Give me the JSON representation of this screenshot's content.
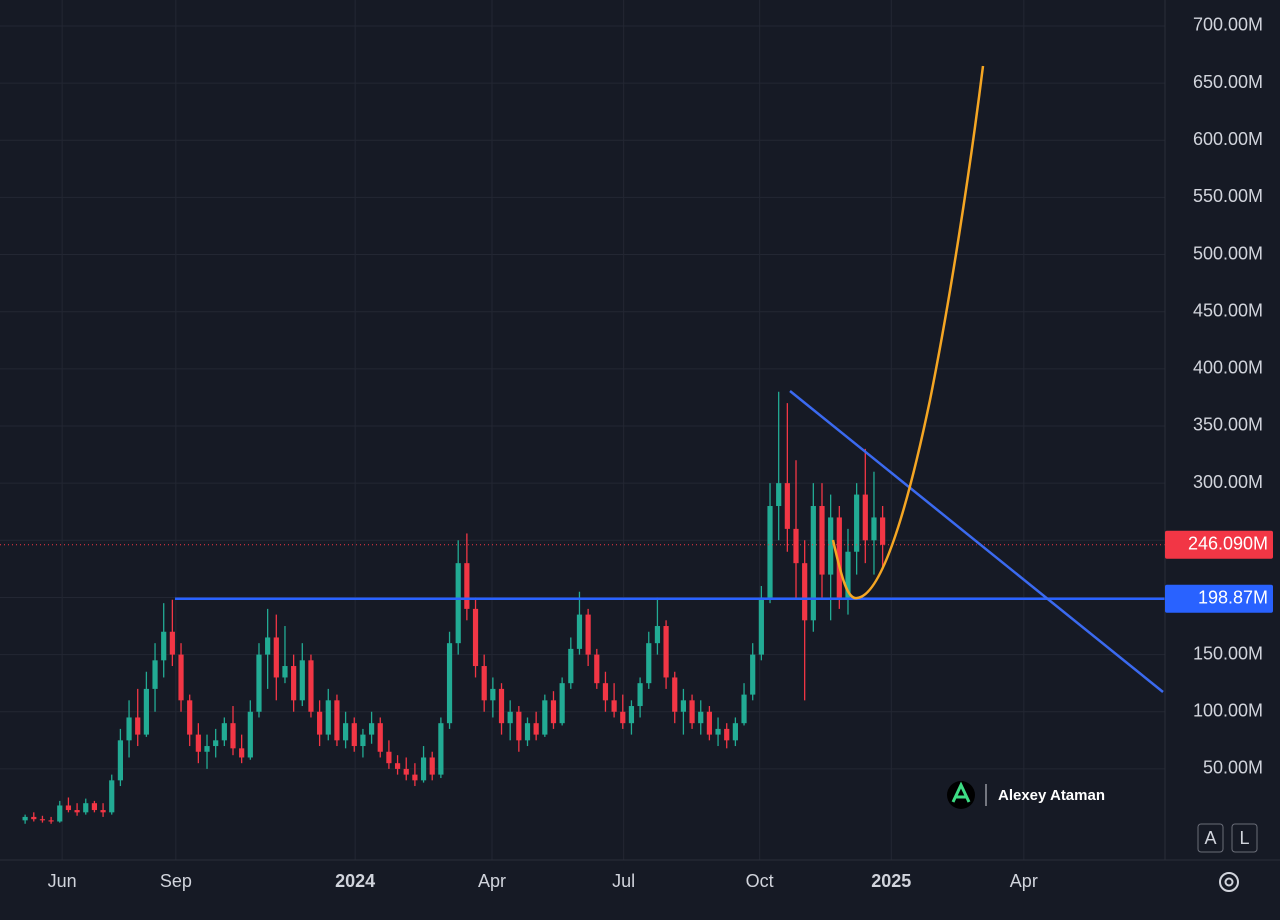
{
  "chart_data": {
    "type": "candlestick",
    "up_color": "#22ab94",
    "down_color": "#f23645",
    "grid": true,
    "xlim": [
      -2.9,
      131.6
    ],
    "xticks": [
      {
        "value": 4.27,
        "label": "Jun"
      },
      {
        "value": 17.4,
        "label": "Sep"
      },
      {
        "value": 38.1,
        "label": "2024"
      },
      {
        "value": 53.9,
        "label": "Apr"
      },
      {
        "value": 69.1,
        "label": "Jul"
      },
      {
        "value": 84.8,
        "label": "Oct"
      },
      {
        "value": 100,
        "label": "2025"
      },
      {
        "value": 115.3,
        "label": "Apr"
      }
    ],
    "ylim": [
      -29.7,
      722.7
    ],
    "yticks": [
      {
        "value": 50,
        "label": "50.00M"
      },
      {
        "value": 100,
        "label": "100.00M"
      },
      {
        "value": 150,
        "label": "150.00M"
      },
      {
        "value": 200,
        "label": "200.00M"
      },
      {
        "value": 250,
        "label": "250.00M"
      },
      {
        "value": 300,
        "label": "300.00M"
      },
      {
        "value": 350,
        "label": "350.00M"
      },
      {
        "value": 400,
        "label": "400.00M"
      },
      {
        "value": 450,
        "label": "450.00M"
      },
      {
        "value": 500,
        "label": "500.00M"
      },
      {
        "value": 550,
        "label": "550.00M"
      },
      {
        "value": 600,
        "label": "600.00M"
      },
      {
        "value": 650,
        "label": "650.00M"
      },
      {
        "value": 700,
        "label": "700.00M"
      }
    ],
    "ohlc": [
      [
        5,
        10,
        2,
        8
      ],
      [
        8,
        12,
        4,
        6
      ],
      [
        6,
        9,
        3,
        5
      ],
      [
        5,
        8,
        2,
        4
      ],
      [
        4,
        22,
        3,
        18
      ],
      [
        18,
        25,
        12,
        14
      ],
      [
        14,
        20,
        9,
        12
      ],
      [
        12,
        24,
        10,
        20
      ],
      [
        20,
        22,
        12,
        14
      ],
      [
        14,
        20,
        8,
        12
      ],
      [
        12,
        45,
        10,
        40
      ],
      [
        40,
        85,
        35,
        75
      ],
      [
        75,
        110,
        60,
        95
      ],
      [
        95,
        120,
        70,
        80
      ],
      [
        80,
        135,
        78,
        120
      ],
      [
        120,
        160,
        100,
        145
      ],
      [
        145,
        195,
        130,
        170
      ],
      [
        170,
        198,
        140,
        150
      ],
      [
        150,
        160,
        100,
        110
      ],
      [
        110,
        115,
        70,
        80
      ],
      [
        80,
        90,
        55,
        65
      ],
      [
        65,
        80,
        50,
        70
      ],
      [
        70,
        85,
        60,
        75
      ],
      [
        75,
        95,
        70,
        90
      ],
      [
        90,
        105,
        62,
        68
      ],
      [
        68,
        80,
        55,
        60
      ],
      [
        60,
        110,
        58,
        100
      ],
      [
        100,
        160,
        95,
        150
      ],
      [
        150,
        190,
        120,
        165
      ],
      [
        165,
        185,
        110,
        130
      ],
      [
        130,
        175,
        125,
        140
      ],
      [
        140,
        150,
        100,
        110
      ],
      [
        110,
        160,
        105,
        145
      ],
      [
        145,
        150,
        95,
        100
      ],
      [
        100,
        110,
        70,
        80
      ],
      [
        80,
        120,
        75,
        110
      ],
      [
        110,
        115,
        70,
        75
      ],
      [
        75,
        100,
        68,
        90
      ],
      [
        90,
        95,
        65,
        70
      ],
      [
        70,
        85,
        60,
        80
      ],
      [
        80,
        100,
        72,
        90
      ],
      [
        90,
        95,
        60,
        65
      ],
      [
        65,
        75,
        50,
        55
      ],
      [
        55,
        62,
        45,
        50
      ],
      [
        50,
        60,
        40,
        45
      ],
      [
        45,
        55,
        35,
        40
      ],
      [
        40,
        70,
        38,
        60
      ],
      [
        60,
        65,
        40,
        45
      ],
      [
        45,
        95,
        42,
        90
      ],
      [
        90,
        170,
        85,
        160
      ],
      [
        160,
        250,
        150,
        230
      ],
      [
        230,
        256,
        180,
        190
      ],
      [
        190,
        200,
        130,
        140
      ],
      [
        140,
        150,
        100,
        110
      ],
      [
        110,
        130,
        95,
        120
      ],
      [
        120,
        125,
        80,
        90
      ],
      [
        90,
        110,
        75,
        100
      ],
      [
        100,
        105,
        65,
        75
      ],
      [
        75,
        95,
        70,
        90
      ],
      [
        90,
        100,
        75,
        80
      ],
      [
        80,
        115,
        78,
        110
      ],
      [
        110,
        118,
        85,
        90
      ],
      [
        90,
        130,
        88,
        125
      ],
      [
        125,
        165,
        120,
        155
      ],
      [
        155,
        205,
        150,
        185
      ],
      [
        185,
        190,
        140,
        150
      ],
      [
        150,
        155,
        120,
        125
      ],
      [
        125,
        135,
        100,
        110
      ],
      [
        110,
        125,
        95,
        100
      ],
      [
        100,
        115,
        85,
        90
      ],
      [
        90,
        110,
        80,
        105
      ],
      [
        105,
        130,
        95,
        125
      ],
      [
        125,
        170,
        120,
        160
      ],
      [
        160,
        200,
        150,
        175
      ],
      [
        175,
        180,
        120,
        130
      ],
      [
        130,
        135,
        90,
        100
      ],
      [
        100,
        120,
        80,
        110
      ],
      [
        110,
        115,
        85,
        90
      ],
      [
        90,
        110,
        80,
        100
      ],
      [
        100,
        105,
        75,
        80
      ],
      [
        80,
        95,
        70,
        85
      ],
      [
        85,
        90,
        68,
        75
      ],
      [
        75,
        95,
        70,
        90
      ],
      [
        90,
        125,
        88,
        115
      ],
      [
        115,
        160,
        110,
        150
      ],
      [
        150,
        210,
        145,
        200
      ],
      [
        200,
        300,
        195,
        280
      ],
      [
        280,
        380,
        250,
        300
      ],
      [
        300,
        370,
        240,
        260
      ],
      [
        260,
        320,
        200,
        230
      ],
      [
        230,
        250,
        110,
        180
      ],
      [
        180,
        300,
        170,
        280
      ],
      [
        280,
        300,
        200,
        220
      ],
      [
        220,
        290,
        180,
        270
      ],
      [
        270,
        280,
        190,
        200
      ],
      [
        200,
        260,
        185,
        240
      ],
      [
        240,
        300,
        220,
        290
      ],
      [
        290,
        330,
        230,
        250
      ],
      [
        250,
        310,
        220,
        270
      ],
      [
        270,
        280,
        225,
        246.09
      ]
    ],
    "price_lines": [
      {
        "value": 246.09,
        "label": "246.090M",
        "color": "#f23645",
        "start": -2.9
      },
      {
        "value": 198.87,
        "label": "198.87M",
        "color": "#2962ff",
        "start": 17.3
      }
    ],
    "watermark": "Alexey Ataman",
    "buttons": [
      "A",
      "L"
    ]
  }
}
